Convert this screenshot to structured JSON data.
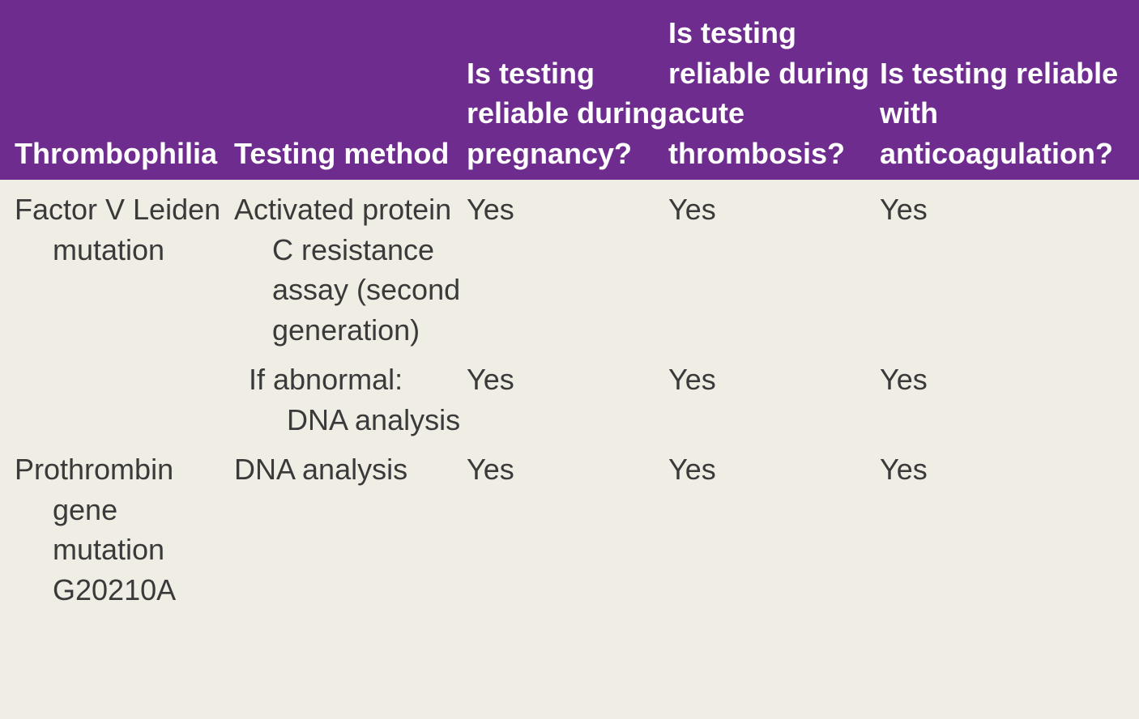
{
  "table": {
    "header": [
      "Thrombophilia",
      "Testing method",
      "Is testing reliable during pregnancy?",
      "Is testing reliable during acute thrombosis?",
      "Is testing reliable with anticoagulation?"
    ],
    "rows": [
      {
        "thrombophilia": "Factor V Leiden mutation",
        "tests": [
          [
            "Activated protein C resistance assay (second generation)",
            "Yes",
            "Yes",
            "Yes"
          ],
          [
            "If abnormal: DNA analysis",
            "Yes",
            "Yes",
            "Yes"
          ]
        ]
      },
      {
        "thrombophilia": "Prothrombin gene mutation G20210A",
        "tests": [
          [
            "DNA analysis",
            "Yes",
            "Yes",
            "Yes"
          ]
        ]
      }
    ]
  }
}
